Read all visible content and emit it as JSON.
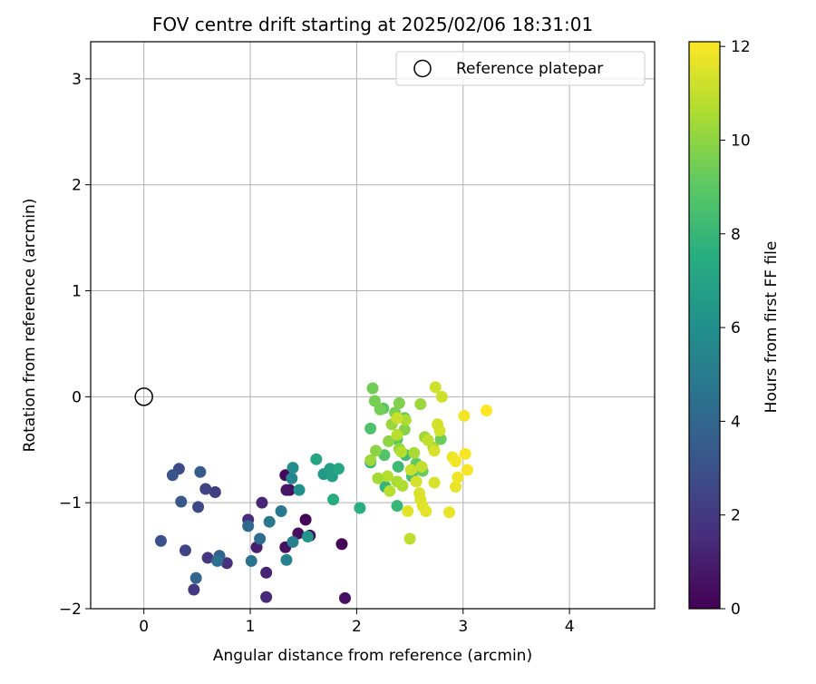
{
  "chart_data": {
    "type": "scatter",
    "title": "FOV centre drift starting at 2025/02/06 18:31:01",
    "xlabel": "Angular distance from reference (arcmin)",
    "ylabel": "Rotation from reference (arcmin)",
    "xlim": [
      -0.5,
      4.8
    ],
    "ylim": [
      -2,
      3.35
    ],
    "xticks": [
      "0",
      "1",
      "2",
      "3",
      "4"
    ],
    "yticks": [
      "−2",
      "−1",
      "0",
      "1",
      "2",
      "3"
    ],
    "grid": true,
    "legend": {
      "position": "top-right",
      "entries": [
        "Reference platepar"
      ]
    },
    "reference": {
      "x": 0,
      "y": 0
    },
    "colorbar": {
      "label": "Hours from first FF file",
      "range": [
        0,
        12.1
      ],
      "colormap": "viridis",
      "ticks": [
        "0",
        "2",
        "4",
        "6",
        "8",
        "10",
        "12"
      ]
    },
    "points": [
      {
        "x": 1.33,
        "y": -0.74,
        "h": 0.2
      },
      {
        "x": 1.52,
        "y": -1.16,
        "h": 0.1
      },
      {
        "x": 1.37,
        "y": -0.88,
        "h": 0.3
      },
      {
        "x": 1.56,
        "y": -1.31,
        "h": 0.2
      },
      {
        "x": 1.45,
        "y": -1.29,
        "h": 0.4
      },
      {
        "x": 1.86,
        "y": -1.39,
        "h": 0.1
      },
      {
        "x": 1.89,
        "y": -1.9,
        "h": 0.5
      },
      {
        "x": 1.33,
        "y": -1.42,
        "h": 0.6
      },
      {
        "x": 1.34,
        "y": -0.88,
        "h": 0.7
      },
      {
        "x": 1.06,
        "y": -1.42,
        "h": 1.0
      },
      {
        "x": 1.15,
        "y": -1.66,
        "h": 1.2
      },
      {
        "x": 1.11,
        "y": -1.0,
        "h": 1.3
      },
      {
        "x": 1.15,
        "y": -1.89,
        "h": 1.4
      },
      {
        "x": 0.98,
        "y": -1.16,
        "h": 1.5
      },
      {
        "x": 0.78,
        "y": -1.57,
        "h": 1.7
      },
      {
        "x": 0.6,
        "y": -1.52,
        "h": 1.9
      },
      {
        "x": 0.47,
        "y": -1.82,
        "h": 2.0
      },
      {
        "x": 0.67,
        "y": -0.9,
        "h": 2.2
      },
      {
        "x": 0.58,
        "y": -0.87,
        "h": 2.4
      },
      {
        "x": 0.39,
        "y": -1.45,
        "h": 2.5
      },
      {
        "x": 0.51,
        "y": -1.04,
        "h": 2.6
      },
      {
        "x": 0.33,
        "y": -0.68,
        "h": 2.8
      },
      {
        "x": 0.16,
        "y": -1.36,
        "h": 3.0
      },
      {
        "x": 0.27,
        "y": -0.74,
        "h": 3.2
      },
      {
        "x": 0.35,
        "y": -0.99,
        "h": 3.3
      },
      {
        "x": 0.53,
        "y": -0.71,
        "h": 3.5
      },
      {
        "x": 0.71,
        "y": -1.5,
        "h": 3.8
      },
      {
        "x": 0.49,
        "y": -1.71,
        "h": 3.9
      },
      {
        "x": 0.98,
        "y": -1.22,
        "h": 4.1
      },
      {
        "x": 1.09,
        "y": -1.34,
        "h": 4.2
      },
      {
        "x": 0.69,
        "y": -1.55,
        "h": 4.4
      },
      {
        "x": 1.01,
        "y": -1.55,
        "h": 4.6
      },
      {
        "x": 1.18,
        "y": -1.18,
        "h": 4.8
      },
      {
        "x": 1.29,
        "y": -1.08,
        "h": 4.9
      },
      {
        "x": 1.4,
        "y": -1.37,
        "h": 5.2
      },
      {
        "x": 1.34,
        "y": -1.54,
        "h": 5.3
      },
      {
        "x": 1.39,
        "y": -0.77,
        "h": 5.5
      },
      {
        "x": 1.4,
        "y": -0.67,
        "h": 5.8
      },
      {
        "x": 1.46,
        "y": -0.88,
        "h": 6.0
      },
      {
        "x": 1.54,
        "y": -1.32,
        "h": 6.3
      },
      {
        "x": 1.69,
        "y": -0.73,
        "h": 6.5
      },
      {
        "x": 1.75,
        "y": -0.68,
        "h": 6.7
      },
      {
        "x": 1.77,
        "y": -0.75,
        "h": 6.8
      },
      {
        "x": 1.62,
        "y": -0.59,
        "h": 7.1
      },
      {
        "x": 1.83,
        "y": -0.68,
        "h": 7.2
      },
      {
        "x": 1.78,
        "y": -0.97,
        "h": 7.4
      },
      {
        "x": 2.03,
        "y": -1.05,
        "h": 7.6
      },
      {
        "x": 2.13,
        "y": -0.62,
        "h": 7.8
      },
      {
        "x": 2.27,
        "y": -0.85,
        "h": 7.9
      },
      {
        "x": 2.38,
        "y": -1.03,
        "h": 8.0
      },
      {
        "x": 2.39,
        "y": -0.66,
        "h": 8.2
      },
      {
        "x": 2.46,
        "y": -0.55,
        "h": 8.3
      },
      {
        "x": 2.52,
        "y": -0.75,
        "h": 8.4
      },
      {
        "x": 2.13,
        "y": -0.3,
        "h": 8.6
      },
      {
        "x": 2.26,
        "y": -0.55,
        "h": 8.7
      },
      {
        "x": 2.38,
        "y": -0.4,
        "h": 8.8
      },
      {
        "x": 2.25,
        "y": -0.11,
        "h": 8.9
      },
      {
        "x": 2.45,
        "y": -0.2,
        "h": 9.0
      },
      {
        "x": 2.56,
        "y": -0.63,
        "h": 9.1
      },
      {
        "x": 2.62,
        "y": -0.7,
        "h": 9.2
      },
      {
        "x": 2.79,
        "y": -0.4,
        "h": 9.3
      },
      {
        "x": 2.15,
        "y": 0.08,
        "h": 9.4
      },
      {
        "x": 2.17,
        "y": -0.04,
        "h": 9.5
      },
      {
        "x": 2.22,
        "y": -0.12,
        "h": 9.5
      },
      {
        "x": 2.36,
        "y": -0.15,
        "h": 9.6
      },
      {
        "x": 2.4,
        "y": -0.06,
        "h": 9.7
      },
      {
        "x": 2.45,
        "y": -0.31,
        "h": 9.8
      },
      {
        "x": 2.18,
        "y": -0.51,
        "h": 9.9
      },
      {
        "x": 2.3,
        "y": -0.42,
        "h": 10.0
      },
      {
        "x": 2.4,
        "y": -0.49,
        "h": 10.1
      },
      {
        "x": 2.33,
        "y": -0.26,
        "h": 10.2
      },
      {
        "x": 2.6,
        "y": -0.07,
        "h": 10.2
      },
      {
        "x": 2.64,
        "y": -0.38,
        "h": 10.3
      },
      {
        "x": 2.72,
        "y": -0.48,
        "h": 10.4
      },
      {
        "x": 2.54,
        "y": -0.53,
        "h": 10.5
      },
      {
        "x": 2.46,
        "y": -0.22,
        "h": 10.6
      },
      {
        "x": 2.29,
        "y": -0.75,
        "h": 10.7
      },
      {
        "x": 2.2,
        "y": -0.77,
        "h": 10.4
      },
      {
        "x": 2.13,
        "y": -0.6,
        "h": 10.3
      },
      {
        "x": 2.38,
        "y": -0.8,
        "h": 10.5
      },
      {
        "x": 2.43,
        "y": -0.84,
        "h": 10.6
      },
      {
        "x": 2.31,
        "y": -0.89,
        "h": 10.8
      },
      {
        "x": 2.5,
        "y": -1.34,
        "h": 10.9
      },
      {
        "x": 2.61,
        "y": -0.66,
        "h": 11.0
      },
      {
        "x": 2.67,
        "y": -0.41,
        "h": 11.0
      },
      {
        "x": 2.51,
        "y": -0.69,
        "h": 11.1
      },
      {
        "x": 2.38,
        "y": -0.2,
        "h": 11.1
      },
      {
        "x": 2.74,
        "y": 0.09,
        "h": 11.2
      },
      {
        "x": 2.8,
        "y": 0.0,
        "h": 11.2
      },
      {
        "x": 2.76,
        "y": -0.26,
        "h": 11.3
      },
      {
        "x": 2.78,
        "y": -0.32,
        "h": 11.3
      },
      {
        "x": 2.73,
        "y": -0.51,
        "h": 11.4
      },
      {
        "x": 2.73,
        "y": -0.81,
        "h": 11.4
      },
      {
        "x": 2.6,
        "y": -0.97,
        "h": 11.5
      },
      {
        "x": 2.62,
        "y": -1.03,
        "h": 11.5
      },
      {
        "x": 2.65,
        "y": -1.08,
        "h": 11.6
      },
      {
        "x": 2.48,
        "y": -1.08,
        "h": 11.6
      },
      {
        "x": 2.87,
        "y": -1.09,
        "h": 11.7
      },
      {
        "x": 2.93,
        "y": -0.85,
        "h": 11.7
      },
      {
        "x": 2.95,
        "y": -0.76,
        "h": 11.8
      },
      {
        "x": 2.9,
        "y": -0.57,
        "h": 11.8
      },
      {
        "x": 2.93,
        "y": -0.61,
        "h": 11.9
      },
      {
        "x": 3.01,
        "y": -0.18,
        "h": 11.9
      },
      {
        "x": 3.02,
        "y": -0.54,
        "h": 12.0
      },
      {
        "x": 3.04,
        "y": -0.69,
        "h": 12.0
      },
      {
        "x": 3.22,
        "y": -0.13,
        "h": 12.1
      },
      {
        "x": 2.59,
        "y": -0.91,
        "h": 11.4
      },
      {
        "x": 2.56,
        "y": -0.8,
        "h": 11.3
      },
      {
        "x": 2.38,
        "y": -0.36,
        "h": 10.8
      },
      {
        "x": 2.42,
        "y": -0.52,
        "h": 10.7
      }
    ]
  }
}
